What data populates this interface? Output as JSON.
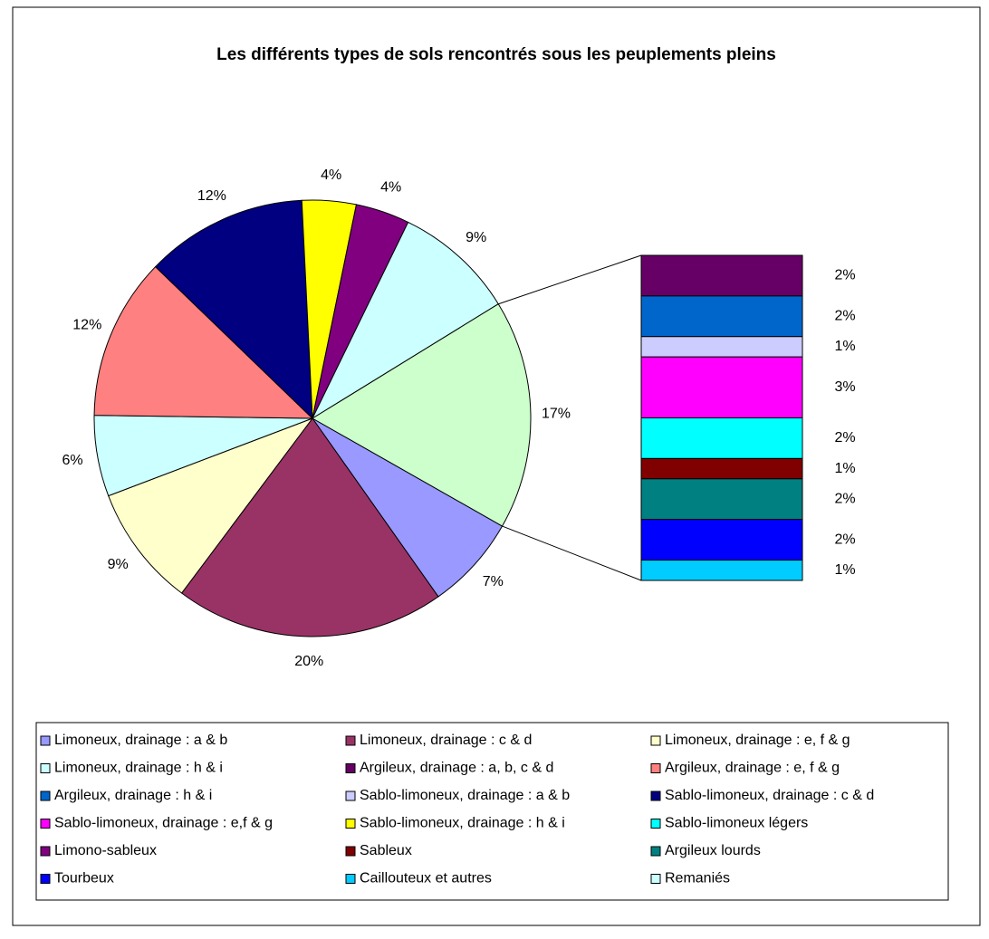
{
  "chart_data": {
    "type": "pie-of-bar",
    "title": "Les différents types de sols rencontrés sous les peuplements pleins",
    "series": [
      {
        "name": "Limoneux, drainage : a & b",
        "color": "#9999FF",
        "part": "pie",
        "value": 7,
        "value_label": "7%"
      },
      {
        "name": "Limoneux, drainage : c & d",
        "color": "#993366",
        "part": "pie",
        "value": 20,
        "value_label": "20%"
      },
      {
        "name": "Limoneux, drainage : e, f & g",
        "color": "#FFFFCC",
        "part": "pie",
        "value": 9,
        "value_label": "9%"
      },
      {
        "name": "Limoneux, drainage : h & i",
        "color": "#CCFFFF",
        "part": "pie",
        "value": 6,
        "value_label": "6%"
      },
      {
        "name": "Argileux, drainage : a, b, c & d",
        "color": "#660066",
        "part": "bar",
        "value": 2,
        "value_label": "2%"
      },
      {
        "name": "Argileux, drainage : e, f & g",
        "color": "#FF8080",
        "part": "pie",
        "value": 12,
        "value_label": "12%"
      },
      {
        "name": "Argileux, drainage : h & i",
        "color": "#0066CC",
        "part": "bar",
        "value": 2,
        "value_label": "2%"
      },
      {
        "name": "Sablo-limoneux, drainage : a & b",
        "color": "#CCCCFF",
        "part": "bar",
        "value": 1,
        "value_label": "1%"
      },
      {
        "name": "Sablo-limoneux, drainage : c & d",
        "color": "#000080",
        "part": "pie",
        "value": 12,
        "value_label": "12%"
      },
      {
        "name": "Sablo-limoneux, drainage : e,f & g",
        "color": "#FF00FF",
        "part": "bar",
        "value": 3,
        "value_label": "3%"
      },
      {
        "name": "Sablo-limoneux, drainage : h & i",
        "color": "#FFFF00",
        "part": "pie",
        "value": 4,
        "value_label": "4%"
      },
      {
        "name": "Sablo-limoneux légers",
        "color": "#00FFFF",
        "part": "bar",
        "value": 2,
        "value_label": "2%"
      },
      {
        "name": "Limono-sableux",
        "color": "#800080",
        "part": "pie",
        "value": 4,
        "value_label": "4%"
      },
      {
        "name": "Sableux",
        "color": "#800000",
        "part": "bar",
        "value": 1,
        "value_label": "1%"
      },
      {
        "name": "Argileux lourds",
        "color": "#008080",
        "part": "bar",
        "value": 2,
        "value_label": "2%"
      },
      {
        "name": "Tourbeux",
        "color": "#0000FF",
        "part": "bar",
        "value": 2,
        "value_label": "2%"
      },
      {
        "name": "Caillouteux et autres",
        "color": "#00CCFF",
        "part": "bar",
        "value": 1,
        "value_label": "1%"
      },
      {
        "name": "Remaniés",
        "color": "#CCFFFF",
        "part": "pie",
        "value": 9,
        "value_label": "9%"
      }
    ],
    "other": {
      "color": "#CCFFCC",
      "value": 17,
      "value_label": "17%"
    }
  }
}
